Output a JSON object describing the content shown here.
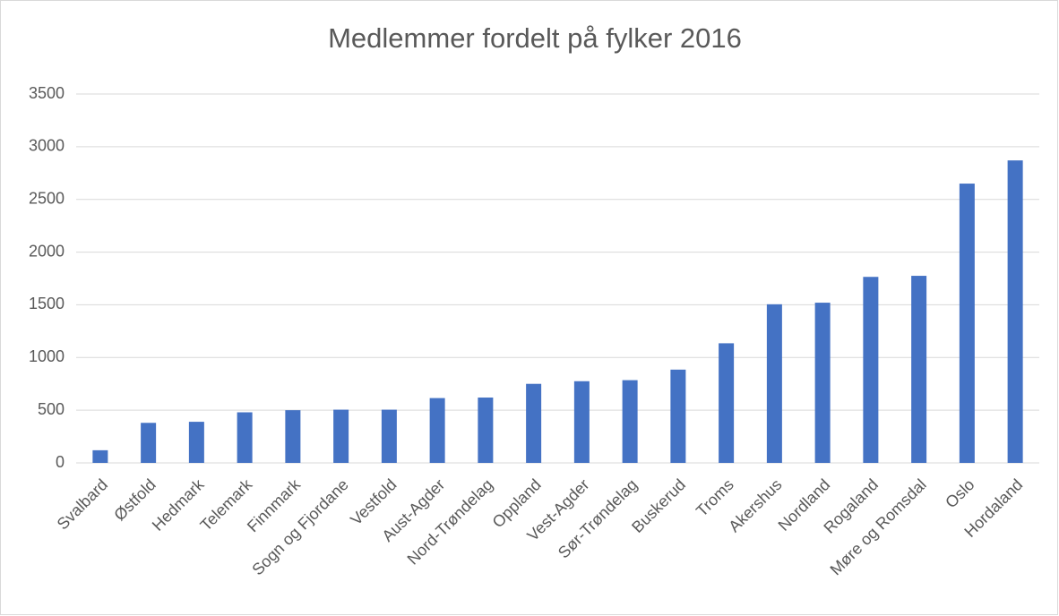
{
  "chart_data": {
    "type": "bar",
    "title": "Medlemmer fordelt på fylker 2016",
    "categories": [
      "Svalbard",
      "Østfold",
      "Hedmark",
      "Telemark",
      "Finnmark",
      "Sogn og Fjordane",
      "Vestfold",
      "Aust-Agder",
      "Nord-Trøndelag",
      "Oppland",
      "Vest-Agder",
      "Sør-Trøndelag",
      "Buskerud",
      "Troms",
      "Akershus",
      "Nordland",
      "Rogaland",
      "Møre og Romsdal",
      "Oslo",
      "Hordaland"
    ],
    "values": [
      120,
      380,
      390,
      480,
      500,
      505,
      505,
      615,
      620,
      750,
      775,
      785,
      885,
      1135,
      1505,
      1520,
      1765,
      1775,
      2650,
      2870
    ],
    "color": "#4472c4",
    "ylim": [
      0,
      3500
    ],
    "yticks": [
      0,
      500,
      1000,
      1500,
      2000,
      2500,
      3000,
      3500
    ],
    "grid": true
  }
}
